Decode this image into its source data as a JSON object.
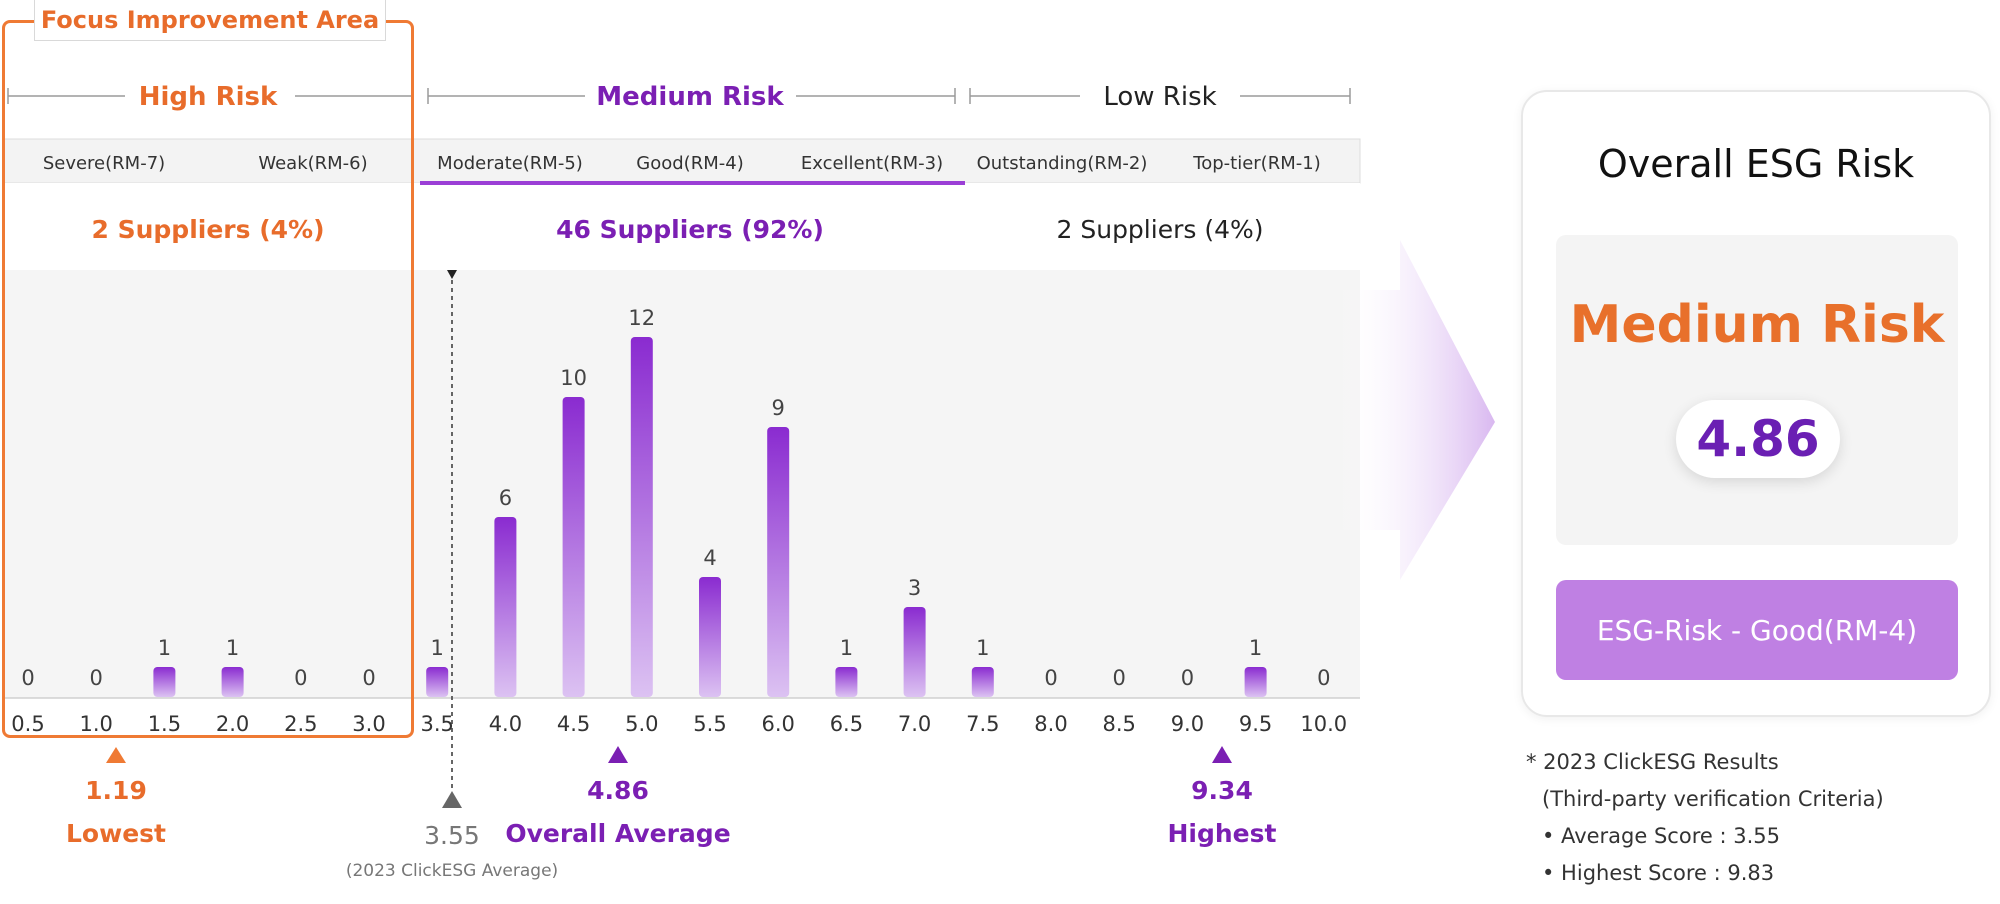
{
  "focus_label": "Focus Improvement Area",
  "risk_groups": [
    {
      "name": "High Risk",
      "color": "#e86c2b",
      "suppliers": "2 Suppliers (4%)"
    },
    {
      "name": "Medium Risk",
      "color": "#7b1fb3",
      "suppliers": "46 Suppliers (92%)"
    },
    {
      "name": "Low Risk",
      "color": "#222222",
      "suppliers": "2 Suppliers (4%)"
    }
  ],
  "ratings": [
    "Severe(RM-7)",
    "Weak(RM-6)",
    "Moderate(RM-5)",
    "Good(RM-4)",
    "Excellent(RM-3)",
    "Outstanding(RM-2)",
    "Top-tier(RM-1)"
  ],
  "markers": {
    "lowest": {
      "value": "1.19",
      "label": "Lowest"
    },
    "clickesg_average": {
      "value": "3.55",
      "label": "(2023 ClickESG Average)"
    },
    "overall_average": {
      "value": "4.86",
      "label": "Overall Average"
    },
    "highest": {
      "value": "9.34",
      "label": "Highest"
    }
  },
  "result_card": {
    "title": "Overall ESG Risk",
    "level": "Medium Risk",
    "score": "4.86",
    "grade": "ESG-Risk - Good(RM-4)"
  },
  "notes": [
    "* 2023 ClickESG Results",
    "(Third-party verification Criteria)",
    "• Average Score : 3.55",
    "• Highest Score : 9.83"
  ],
  "colors": {
    "high": "#e86c2b",
    "medium": "#7b1fb3",
    "bar_top": "#8a2bd0",
    "bar_bottom": "#dcc2f2",
    "focus_border": "#ef7a34"
  },
  "chart_data": {
    "type": "bar",
    "title": "",
    "xlabel": "",
    "ylabel": "",
    "categories": [
      "0.5",
      "1.0",
      "1.5",
      "2.0",
      "2.5",
      "3.0",
      "3.5",
      "4.0",
      "4.5",
      "5.0",
      "5.5",
      "6.0",
      "6.5",
      "7.0",
      "7.5",
      "8.0",
      "8.5",
      "9.0",
      "9.5",
      "10.0"
    ],
    "values": [
      0,
      0,
      1,
      1,
      0,
      0,
      1,
      6,
      10,
      12,
      4,
      9,
      1,
      3,
      1,
      0,
      0,
      0,
      1,
      0
    ],
    "ylim": [
      0,
      12
    ],
    "grid": false
  }
}
